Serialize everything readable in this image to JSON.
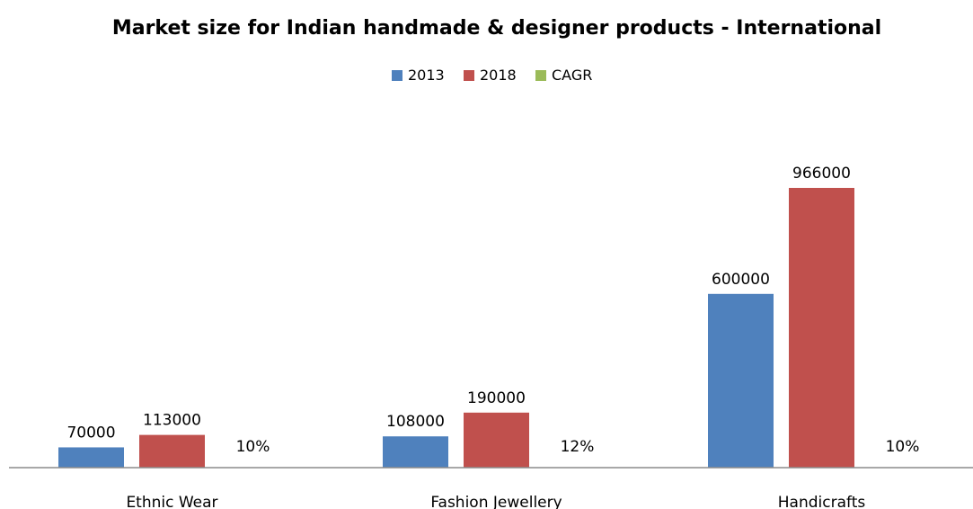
{
  "chart_data": {
    "type": "bar",
    "title": "Market size for Indian handmade & designer products - International",
    "categories": [
      "Ethnic Wear",
      "Fashion Jewellery",
      "Handicrafts"
    ],
    "series": [
      {
        "name": "2013",
        "values": [
          70000,
          108000,
          600000
        ],
        "labels": [
          "70000",
          "108000",
          "600000"
        ],
        "color": "#4F81BD"
      },
      {
        "name": "2018",
        "values": [
          113000,
          190000,
          966000
        ],
        "labels": [
          "113000",
          "190000",
          "966000"
        ],
        "color": "#C0504D"
      },
      {
        "name": "CAGR",
        "values": [
          10,
          12,
          10
        ],
        "labels": [
          "10%",
          "12%",
          "10%"
        ],
        "color": "#9BBB59"
      }
    ],
    "ylim": [
      0,
      1000000
    ],
    "grid": false,
    "legend_position": "top-center"
  }
}
